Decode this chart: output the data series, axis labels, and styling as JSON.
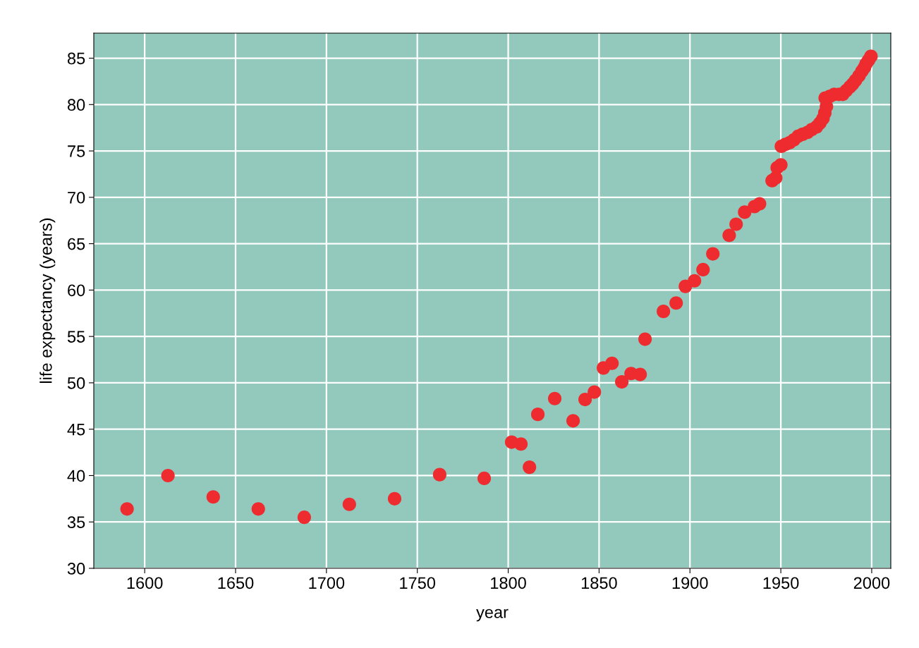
{
  "chart_data": {
    "type": "scatter",
    "xlabel": "year",
    "ylabel": "life expectancy (years)",
    "x": [
      1590.3,
      1612.8,
      1637.7,
      1662.5,
      1687.8,
      1712.6,
      1737.5,
      1762.3,
      1786.8,
      1801.9,
      1807,
      1811.7,
      1816.3,
      1825.6,
      1835.7,
      1842.3,
      1847.4,
      1852.4,
      1857.1,
      1862.5,
      1867.6,
      1872.6,
      1875.3,
      1885.4,
      1892.4,
      1897.5,
      1902.5,
      1907.2,
      1912.6,
      1921.6,
      1925.4,
      1930.1,
      1935.5,
      1938.3,
      1945.2,
      1947.2,
      1948,
      1950,
      1950.3,
      1952.5,
      1954.9,
      1957.2,
      1959.6,
      1962,
      1964.7,
      1967,
      1969.7,
      1971.5,
      1973.2,
      1974.2,
      1975.1,
      1974.4,
      1977,
      1979.4,
      1982,
      1984.1,
      1986,
      1988,
      1989.5,
      1991.1,
      1993,
      1994.6,
      1996,
      1996.9,
      1998.3,
      1999.6
    ],
    "series": [
      {
        "color": "#ee2b2e",
        "values": [
          36.4,
          40.0,
          37.7,
          36.4,
          35.5,
          36.9,
          37.5,
          40.1,
          39.7,
          43.6,
          43.4,
          40.9,
          46.6,
          48.3,
          45.9,
          48.2,
          49.0,
          51.6,
          52.1,
          50.1,
          51.0,
          50.9,
          54.7,
          57.7,
          58.6,
          60.4,
          61.0,
          62.2,
          63.9,
          65.9,
          67.1,
          68.4,
          69.0,
          69.3,
          71.8,
          72.1,
          73.2,
          73.5,
          75.5,
          75.7,
          75.9,
          76.2,
          76.6,
          76.8,
          77.0,
          77.3,
          77.6,
          78.0,
          78.5,
          79.1,
          79.8,
          80.7,
          80.9,
          81.1,
          81.1,
          81.1,
          81.5,
          81.9,
          82.2,
          82.6,
          83.1,
          83.6,
          84.0,
          84.4,
          84.8,
          85.2
        ]
      }
    ],
    "xlim": [
      1572,
      2010.5
    ],
    "ylim": [
      30,
      87.7
    ],
    "xticks": [
      1600,
      1650,
      1700,
      1750,
      1800,
      1850,
      1900,
      1950,
      2000
    ],
    "yticks": [
      30,
      35,
      40,
      45,
      50,
      55,
      60,
      65,
      70,
      75,
      80,
      85
    ],
    "grid": true,
    "marker": "circle"
  }
}
